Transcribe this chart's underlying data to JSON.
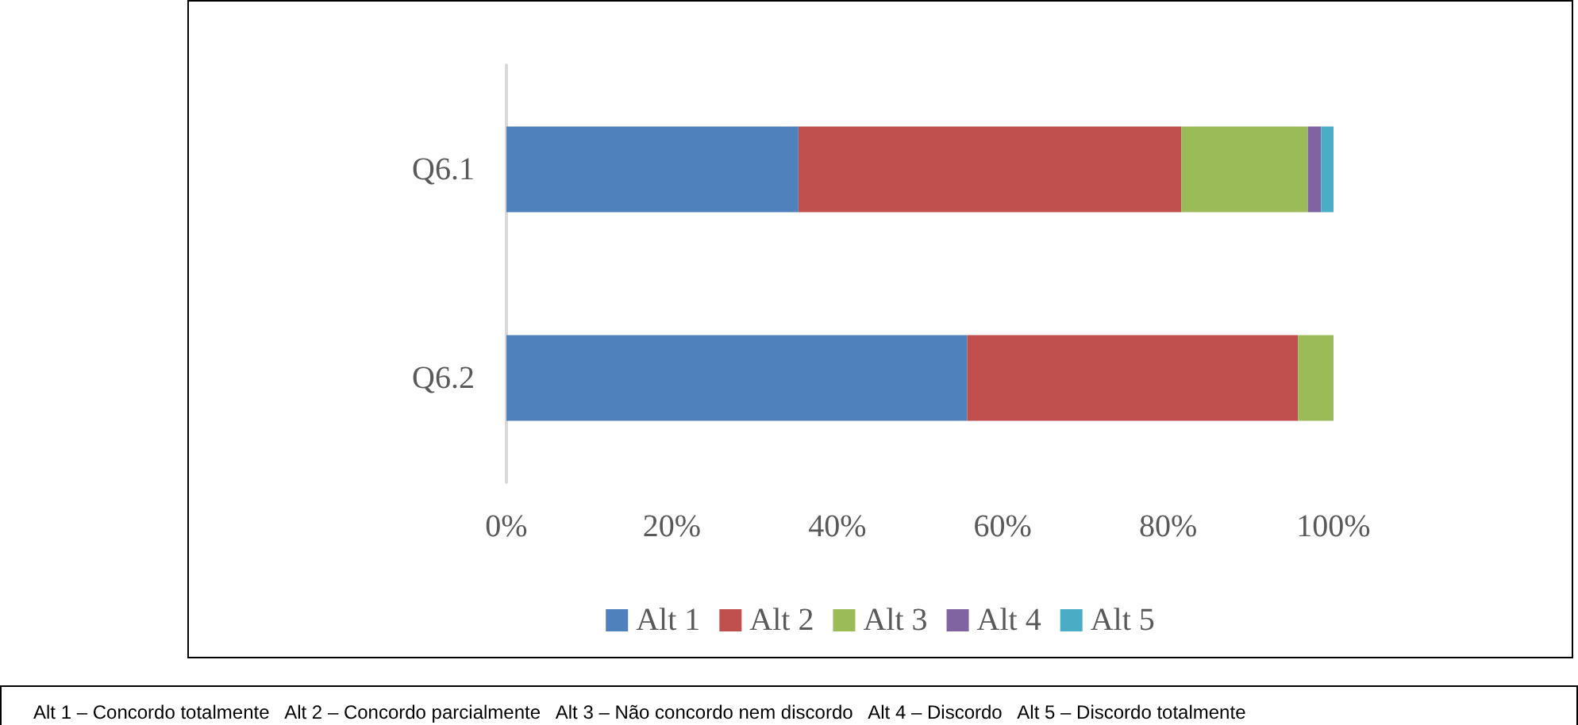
{
  "chart_data": {
    "type": "bar",
    "orientation": "horizontal",
    "stacked": true,
    "categories": [
      "Q6.1",
      "Q6.2"
    ],
    "series": [
      {
        "name": "Alt 1",
        "color": "#4f81bd",
        "values": [
          35.3,
          55.7
        ]
      },
      {
        "name": "Alt 2",
        "color": "#c0504d",
        "values": [
          46.3,
          40
        ]
      },
      {
        "name": "Alt 3",
        "color": "#9bbb59",
        "values": [
          15.3,
          4.3
        ]
      },
      {
        "name": "Alt 4",
        "color": "#8064a2",
        "values": [
          1.6,
          0
        ]
      },
      {
        "name": "Alt 5",
        "color": "#4bacc6",
        "values": [
          1.5,
          0
        ]
      }
    ],
    "xlim": [
      0,
      100
    ],
    "xticks": [
      {
        "value": 0,
        "label": "0%"
      },
      {
        "value": 20,
        "label": "20%"
      },
      {
        "value": 40,
        "label": "40%"
      },
      {
        "value": 60,
        "label": "60%"
      },
      {
        "value": 80,
        "label": "80%"
      },
      {
        "value": 100,
        "label": "100%"
      }
    ],
    "grid": false,
    "legend": "bottom",
    "annotations": [
      "Alt 1 – Concordo totalmente   Alt 2 – Concordo parcialmente   Alt 3 – Não concordo nem discordo   Alt 4 – Discordo   Alt 5 – Discordo totalmente"
    ]
  }
}
